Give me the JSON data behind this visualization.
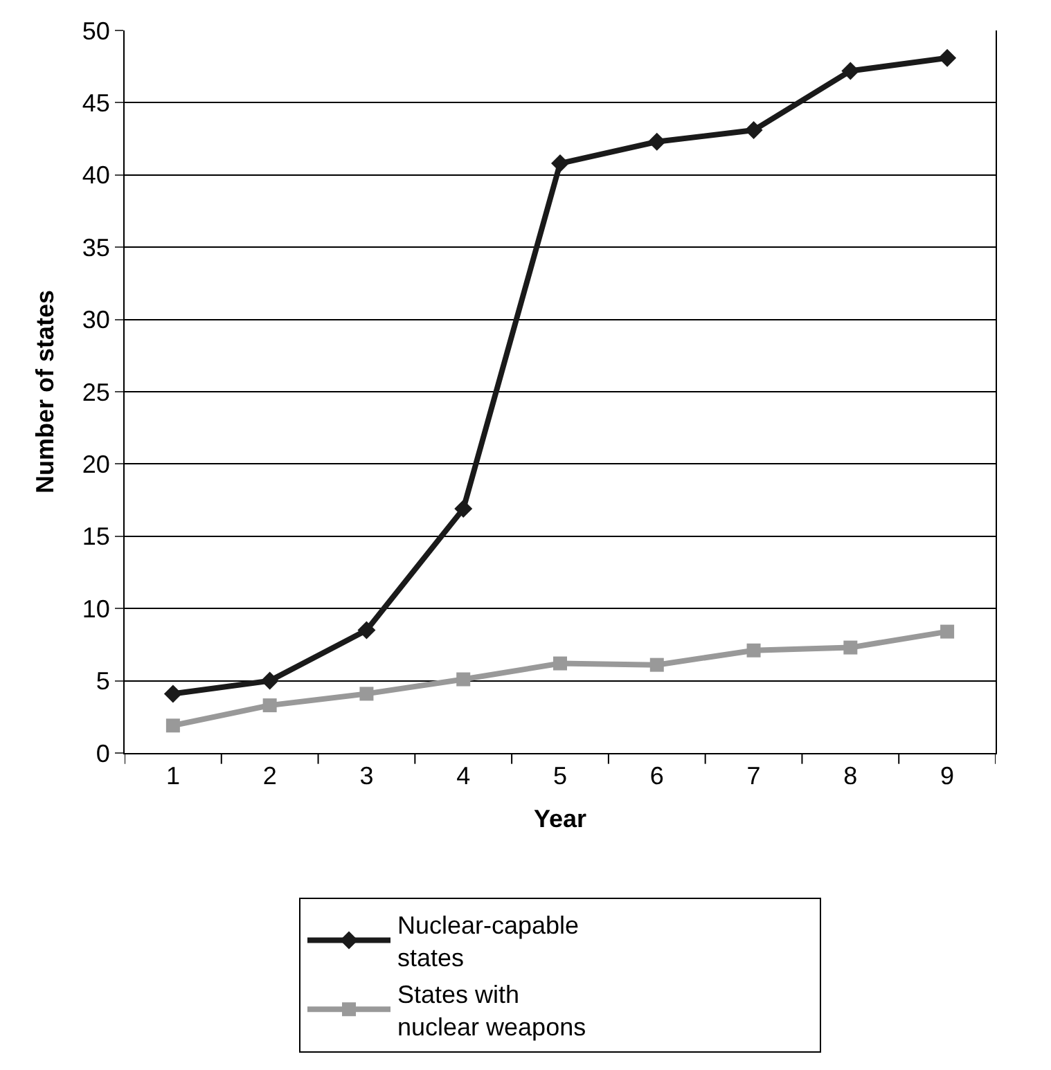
{
  "chart_data": {
    "type": "line",
    "xlabel": "Year",
    "ylabel": "Number of states",
    "categories": [
      "1",
      "2",
      "3",
      "4",
      "5",
      "6",
      "7",
      "8",
      "9"
    ],
    "series": [
      {
        "name": "Nuclear-capable states",
        "color": "#1a1a1a",
        "marker": "diamond",
        "values": [
          4.1,
          5.0,
          8.5,
          16.9,
          40.8,
          42.3,
          43.1,
          47.2,
          48.1
        ]
      },
      {
        "name": "States with nuclear weapons",
        "color": "#999999",
        "marker": "square",
        "values": [
          1.9,
          3.3,
          4.1,
          5.1,
          6.2,
          6.1,
          7.1,
          7.3,
          8.4
        ]
      }
    ],
    "ylim": [
      0,
      50
    ],
    "yticks": [
      0,
      5,
      10,
      15,
      20,
      25,
      30,
      35,
      40,
      45,
      50
    ],
    "grid": "y",
    "legend": "bottom",
    "line_style": "solid"
  }
}
